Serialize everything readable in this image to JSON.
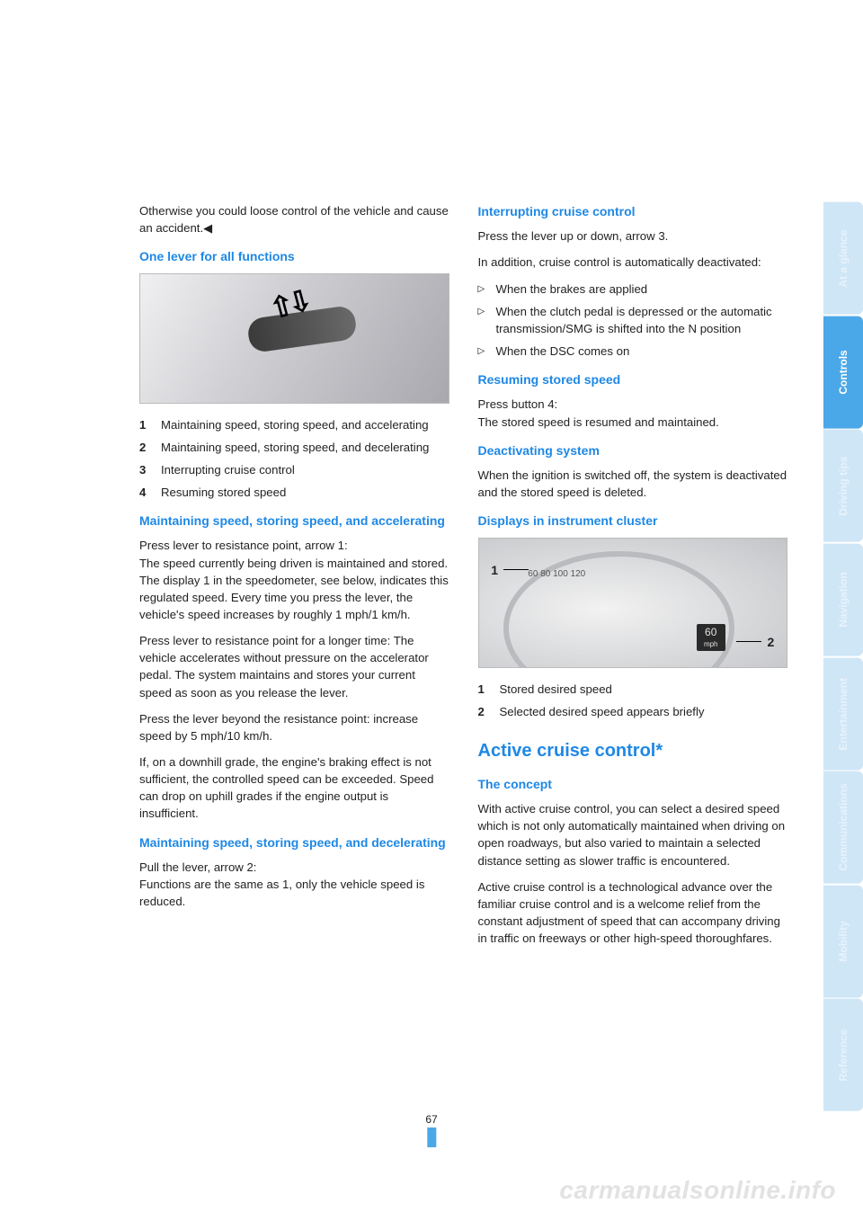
{
  "tabs": [
    "At a glance",
    "Controls",
    "Driving tips",
    "Navigation",
    "Entertainment",
    "Communications",
    "Mobility",
    "Reference"
  ],
  "active_tab_index": 1,
  "page_number": "67",
  "watermark": "carmanualsonline.info",
  "left": {
    "intro": "Otherwise you could loose control of the vehicle and cause an accident.◀",
    "h1": "One lever for all functions",
    "list1": [
      {
        "n": "1",
        "t": "Maintaining speed, storing speed, and accelerating"
      },
      {
        "n": "2",
        "t": "Maintaining speed, storing speed, and decelerating"
      },
      {
        "n": "3",
        "t": "Interrupting cruise control"
      },
      {
        "n": "4",
        "t": "Resuming stored speed"
      }
    ],
    "h2": "Maintaining speed, storing speed, and accelerating",
    "p2a": "Press lever to resistance point, arrow 1:\nThe speed currently being driven is maintained and stored. The display 1 in the speedometer, see below, indicates this regulated speed. Every time you press the lever, the vehicle's speed increases by roughly 1 mph/1 km/h.",
    "p2b": "Press lever to resistance point for a longer time: The vehicle accelerates without pressure on the accelerator pedal. The system maintains and stores your current speed as soon as you release the lever.",
    "p2c": "Press the lever beyond the resistance point: increase speed by 5 mph/10 km/h.",
    "p2d": "If, on a downhill grade, the engine's braking effect is not sufficient, the controlled speed can be exceeded. Speed can drop on uphill grades if the engine output is insufficient.",
    "h3": "Maintaining speed, storing speed, and decelerating",
    "p3": "Pull the lever, arrow 2:\nFunctions are the same as 1, only the vehicle speed is reduced."
  },
  "right": {
    "h1": "Interrupting cruise control",
    "p1a": "Press the lever up or down, arrow 3.",
    "p1b": "In addition, cruise control is automatically deactivated:",
    "bullets1": [
      "When the brakes are applied",
      "When the clutch pedal is depressed or the automatic transmission/SMG is shifted into the N position",
      "When the DSC comes on"
    ],
    "h2": "Resuming stored speed",
    "p2": "Press button 4:\nThe stored speed is resumed and maintained.",
    "h3": "Deactivating system",
    "p3": "When the ignition is switched off, the system is deactivated and the stored speed is deleted.",
    "h4": "Displays in instrument cluster",
    "cluster": {
      "label1": "1",
      "label2": "2",
      "lcd_speed": "60",
      "lcd_unit": "mph",
      "ticks": "60  80  100  120"
    },
    "list2": [
      {
        "n": "1",
        "t": "Stored desired speed"
      },
      {
        "n": "2",
        "t": "Selected desired speed appears briefly"
      }
    ],
    "h5": "Active cruise control*",
    "h6": "The concept",
    "p6a": "With active cruise control, you can select a desired speed which is not only automatically maintained when driving on open roadways, but also varied to maintain a selected distance setting as slower traffic is encountered.",
    "p6b": "Active cruise control is a technological advance over the familiar cruise control and is a welcome relief from the constant adjustment of speed that can accompany driving in traffic on freeways or other high-speed thoroughfares."
  }
}
